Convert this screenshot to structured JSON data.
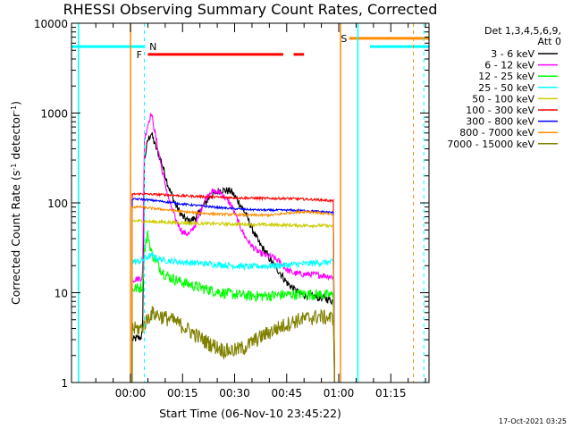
{
  "chart_data": {
    "type": "line",
    "title": "RHESSI Observing Summary Count Rates, Corrected",
    "xlabel": "Start Time (06-Nov-10 23:45:22)",
    "ylabel_main": "Corrected Count Rate (s",
    "ylabel_sup1": "-1",
    "ylabel_mid": " detector",
    "ylabel_sup2": "-1",
    "ylabel_end": ")",
    "yscale": "log",
    "ylim": [
      1,
      10000
    ],
    "xlim_minutes": [
      -17,
      86
    ],
    "y_ticks": [
      {
        "value": 1,
        "label": "1"
      },
      {
        "value": 10,
        "label": "10"
      },
      {
        "value": 100,
        "label": "100"
      },
      {
        "value": 1000,
        "label": "1000"
      },
      {
        "value": 10000,
        "label": "10000"
      }
    ],
    "x_ticks": [
      {
        "value": 0,
        "label": "00:00"
      },
      {
        "value": 15,
        "label": "00:15"
      },
      {
        "value": 30,
        "label": "00:30"
      },
      {
        "value": 45,
        "label": "00:45"
      },
      {
        "value": 60,
        "label": "01:00"
      },
      {
        "value": 75,
        "label": "01:15"
      }
    ],
    "legend_header": [
      "Det 1,3,4,5,6,9,",
      "Att 0"
    ],
    "legend_position": "outside-right",
    "series": [
      {
        "name": "3 - 6 keV",
        "color": "#000000",
        "x": [
          0.5,
          3,
          3.5,
          4,
          5,
          6,
          7,
          9,
          11,
          13,
          15,
          17,
          19,
          21,
          23,
          26,
          29,
          31,
          33,
          35,
          37,
          39,
          41,
          43,
          45,
          47,
          49,
          51,
          53,
          55,
          57,
          58.5
        ],
        "y": [
          3,
          3.2,
          3.6,
          300,
          500,
          600,
          450,
          280,
          150,
          95,
          70,
          62,
          70,
          92,
          120,
          140,
          135,
          105,
          78,
          52,
          36,
          28,
          21,
          17,
          13,
          11,
          9.7,
          9.3,
          9,
          8.8,
          8.5,
          8
        ]
      },
      {
        "name": "6 - 12 keV",
        "color": "#ff00ff",
        "x": [
          0.5,
          3,
          3.5,
          4,
          5,
          6,
          7,
          9,
          11,
          13,
          15,
          17,
          19,
          21,
          23,
          26,
          29,
          31,
          33,
          35,
          37,
          39,
          41,
          43,
          45,
          47,
          50,
          53,
          56,
          58.5
        ],
        "y": [
          14,
          14.5,
          15,
          500,
          750,
          1000,
          620,
          240,
          110,
          65,
          47,
          45,
          60,
          100,
          135,
          130,
          95,
          62,
          42,
          33,
          28,
          26,
          25,
          22,
          18,
          16.5,
          16,
          16,
          15.5,
          15
        ]
      },
      {
        "name": "12 - 25 keV",
        "color": "#00ff00",
        "x": [
          0.5,
          3,
          3.5,
          4,
          5,
          6,
          8,
          10,
          12,
          14,
          16,
          18,
          21,
          24,
          27,
          30,
          34,
          38,
          42,
          46,
          50,
          54,
          58.5
        ],
        "y": [
          11,
          11.5,
          12,
          30,
          45,
          28,
          20,
          16,
          14.5,
          13.5,
          12.8,
          12,
          11.2,
          10.5,
          10,
          9.6,
          9.3,
          9.2,
          9.4,
          9.6,
          9.7,
          9.6,
          9.4
        ]
      },
      {
        "name": "25 - 50 keV",
        "color": "#00ffff",
        "x": [
          0.5,
          3,
          4,
          6,
          8,
          10,
          14,
          18,
          22,
          26,
          30,
          34,
          38,
          42,
          46,
          50,
          54,
          58.5
        ],
        "y": [
          22,
          22.5,
          24,
          26,
          24,
          23,
          22,
          21.5,
          21,
          20.5,
          20,
          19.5,
          19.8,
          20,
          20.5,
          21,
          21.5,
          22
        ]
      },
      {
        "name": "50 - 100 keV",
        "color": "#cccc00",
        "x": [
          0.5,
          3,
          5,
          10,
          15,
          20,
          25,
          30,
          35,
          40,
          45,
          50,
          55,
          58.5
        ],
        "y": [
          63,
          63,
          62,
          61,
          60,
          59,
          58.5,
          58,
          57.5,
          57,
          56.5,
          56,
          56,
          55
        ]
      },
      {
        "name": "100 - 300 keV",
        "color": "#ff0000",
        "x": [
          0.5,
          3,
          5,
          10,
          15,
          20,
          25,
          30,
          35,
          40,
          45,
          50,
          55,
          58.5
        ],
        "y": [
          125,
          126,
          125,
          123,
          120,
          118,
          116,
          114,
          113,
          112,
          112,
          110,
          108,
          105
        ]
      },
      {
        "name": "300 - 800 keV",
        "color": "#0000ff",
        "x": [
          0.5,
          3,
          5,
          10,
          15,
          20,
          25,
          30,
          35,
          40,
          45,
          50,
          55,
          58.5
        ],
        "y": [
          110,
          110,
          108,
          103,
          97,
          93,
          89,
          86,
          84,
          83,
          83,
          82,
          80,
          78
        ]
      },
      {
        "name": "800 - 7000 keV",
        "color": "#ff8c00",
        "x": [
          0.5,
          3,
          5,
          10,
          15,
          20,
          25,
          30,
          35,
          40,
          42,
          45,
          48,
          51,
          54,
          57,
          58.5
        ],
        "y": [
          90,
          90,
          88,
          84,
          80,
          77,
          75,
          74,
          73,
          73,
          74,
          77,
          79,
          80,
          78,
          75,
          73
        ]
      },
      {
        "name": "7000 - 15000 keV",
        "color": "#808000",
        "x": [
          0.5,
          3,
          4,
          6,
          9,
          12,
          15,
          18,
          21,
          24,
          27,
          30,
          33,
          36,
          39,
          42,
          45,
          48,
          51,
          54,
          57,
          58.5
        ],
        "y": [
          4,
          4,
          4.5,
          6,
          5.5,
          5,
          4.3,
          3.6,
          3,
          2.6,
          2.3,
          2.3,
          2.5,
          3,
          3.5,
          4,
          4.5,
          5,
          5.2,
          5.5,
          5.3,
          5.2
        ]
      }
    ],
    "annotations": [
      {
        "kind": "segment",
        "label": "N",
        "color": "#00ffff",
        "y": 5500,
        "segments": [
          [
            -17,
            4
          ],
          [
            69,
            86
          ]
        ],
        "x_label": 6.5
      },
      {
        "kind": "segment",
        "label": "F",
        "color": "#ff0000",
        "y": 4500,
        "segments": [
          [
            5,
            44
          ],
          [
            47,
            50
          ]
        ],
        "x_label": 2.5
      },
      {
        "kind": "segment",
        "label": "S",
        "color": "#ff8c00",
        "y": 6800,
        "segments": [
          [
            63,
            86
          ]
        ],
        "x_label": 61.5
      },
      {
        "kind": "vline",
        "label": "",
        "color": "#00ffff",
        "x": 4,
        "dashed": true
      },
      {
        "kind": "vline",
        "label": "",
        "color": "#00ffff",
        "x": 84.5,
        "dashed": true
      },
      {
        "kind": "vline",
        "label": "",
        "color": "#ff8c00",
        "x": 81.5,
        "dashed": true
      },
      {
        "kind": "vline",
        "label": "",
        "color": "#ff8c00",
        "x": 60.5,
        "dashed": false
      },
      {
        "kind": "vline",
        "label": "",
        "color": "#00ffff",
        "x": 65.5,
        "dashed": false
      },
      {
        "kind": "vline",
        "label": "",
        "color": "#00ffff",
        "x": -15,
        "dashed": false
      },
      {
        "kind": "vline",
        "label": "",
        "color": "#ff8c00",
        "x": 0,
        "dashed": false
      }
    ],
    "footer": "17-Oct-2021 03:25"
  }
}
